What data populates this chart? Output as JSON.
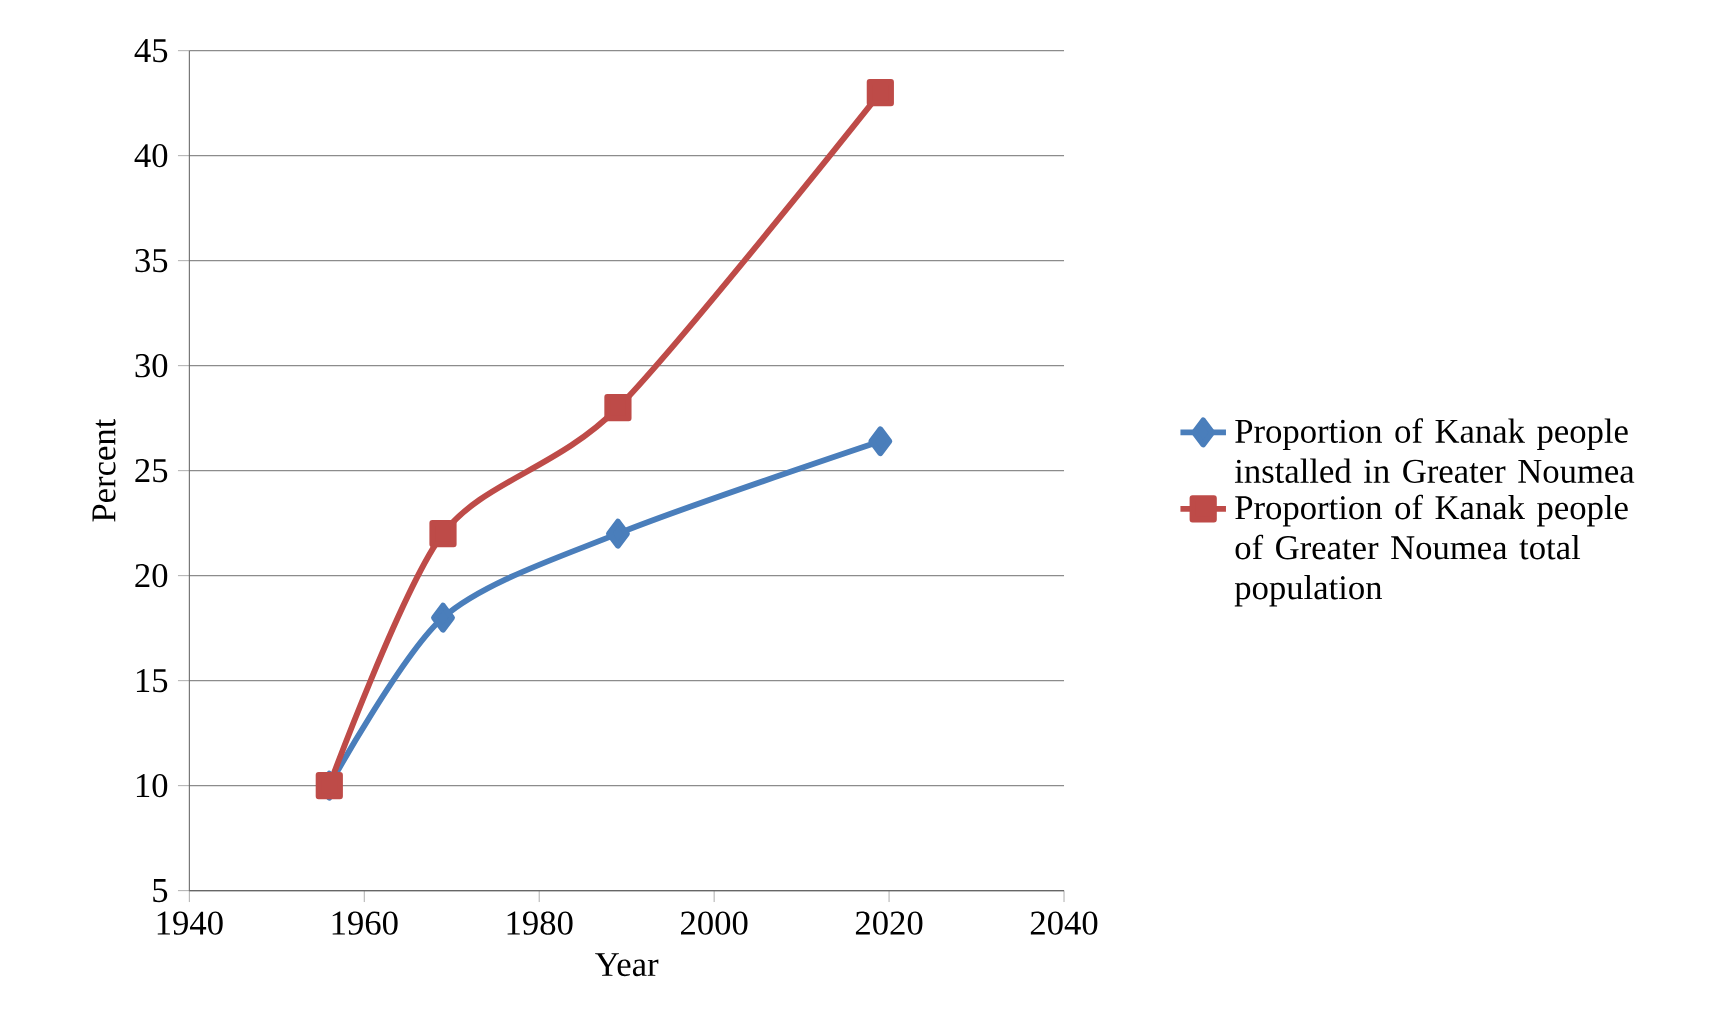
{
  "chart_data": {
    "type": "line",
    "xlabel": "Year",
    "ylabel": "Percent",
    "xlim": [
      1940,
      2040
    ],
    "xticks": [
      1940,
      1960,
      1980,
      2000,
      2020,
      2040
    ],
    "ylim": [
      5,
      45
    ],
    "yticks": [
      5,
      10,
      15,
      20,
      25,
      30,
      35,
      40,
      45
    ],
    "grid": "y",
    "legend": "right",
    "line_style": "solid",
    "series": [
      {
        "name": "Proportion of Kanak people installed in Greater Noumea",
        "color": "#4a7ebb",
        "marker": "diamond",
        "x": [
          1956,
          1969,
          1989,
          2019
        ],
        "values": [
          10,
          18,
          22,
          26.4
        ]
      },
      {
        "name": "Proportion of Kanak people of Greater Noumea total population",
        "color": "#be4b48",
        "marker": "square",
        "x": [
          1956,
          1969,
          1989,
          2019
        ],
        "values": [
          10,
          22,
          28,
          43
        ]
      }
    ]
  }
}
